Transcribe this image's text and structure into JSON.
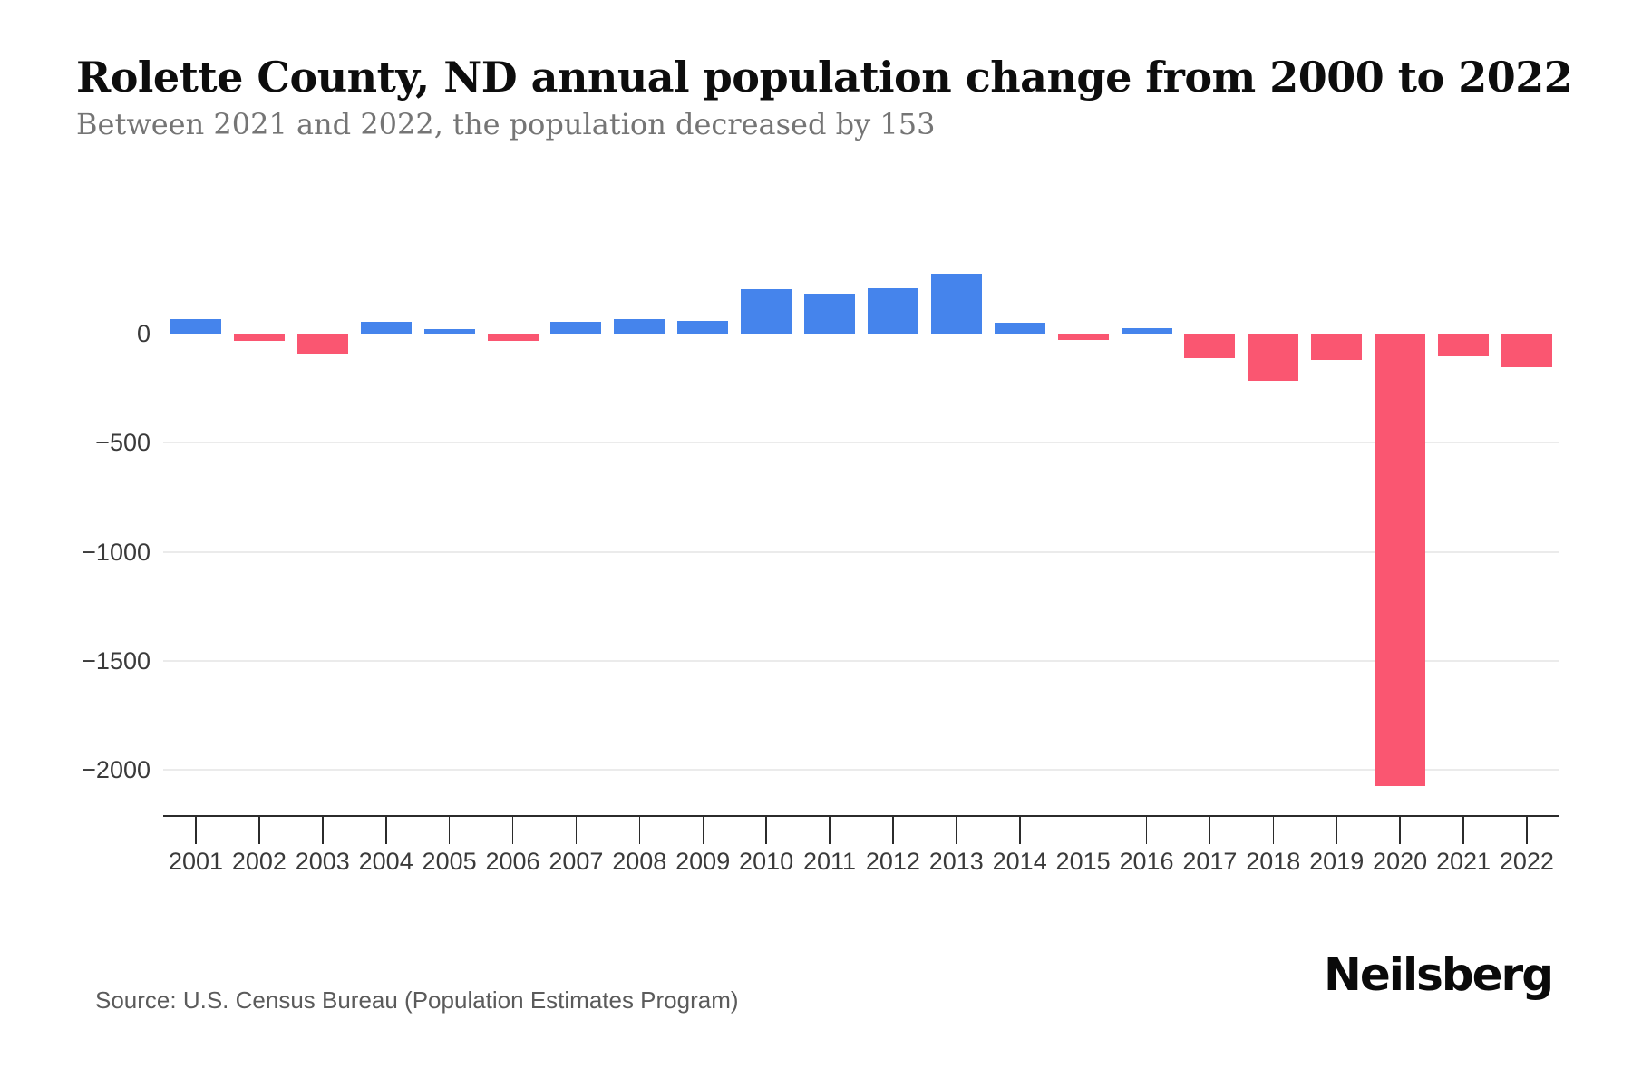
{
  "header": {
    "title": "Rolette County, ND annual population change from 2000 to 2022",
    "subtitle": "Between 2021 and 2022, the population decreased by 153"
  },
  "footer": {
    "source": "Source: U.S. Census Bureau (Population Estimates Program)",
    "brand": "Neilsberg"
  },
  "colors": {
    "positive_bar": "#4584ec",
    "negative_bar": "#fa5671",
    "gridline": "#ebebeb",
    "axis": "#2b2b2b",
    "tick_label": "#3a3a3a",
    "background": "#ffffff"
  },
  "chart_data": {
    "type": "bar",
    "title": "Rolette County, ND annual population change from 2000 to 2022",
    "subtitle": "Between 2021 and 2022, the population decreased by 153",
    "xlabel": "",
    "ylabel": "",
    "categories": [
      "2001",
      "2002",
      "2003",
      "2004",
      "2005",
      "2006",
      "2007",
      "2008",
      "2009",
      "2010",
      "2011",
      "2012",
      "2013",
      "2014",
      "2015",
      "2016",
      "2017",
      "2018",
      "2019",
      "2020",
      "2021",
      "2022"
    ],
    "values": [
      65,
      -35,
      -90,
      55,
      20,
      -35,
      55,
      65,
      60,
      205,
      185,
      210,
      275,
      50,
      -30,
      25,
      -110,
      -215,
      -120,
      -2075,
      -105,
      -153
    ],
    "yticks": [
      {
        "label": "0",
        "value": 0
      },
      {
        "label": "−500",
        "value": -500
      },
      {
        "label": "−1000",
        "value": -1000
      },
      {
        "label": "−1500",
        "value": -1500
      },
      {
        "label": "−2000",
        "value": -2000
      }
    ],
    "ylim": [
      -2150,
      300
    ],
    "grid": true,
    "legend": false,
    "source": "Source: U.S. Census Bureau (Population Estimates Program)"
  }
}
